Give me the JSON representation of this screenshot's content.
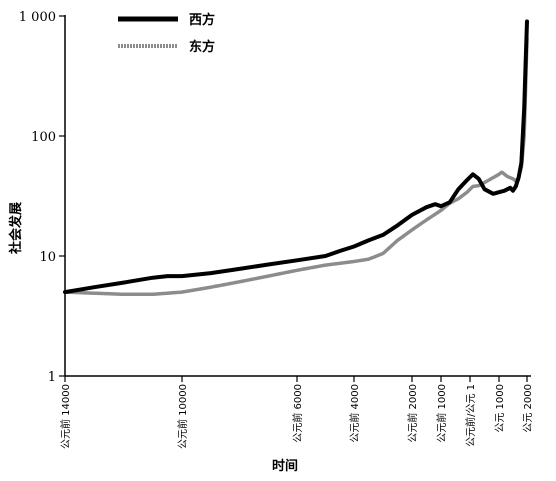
{
  "chart_data": {
    "type": "line",
    "title": "",
    "xlabel": "时间",
    "ylabel": "社会发展",
    "yscale": "log",
    "ylim": [
      1,
      1000
    ],
    "yticks": [
      {
        "value": 1,
        "label": "1"
      },
      {
        "value": 10,
        "label": "10"
      },
      {
        "value": 100,
        "label": "100"
      },
      {
        "value": 1000,
        "label": "1 000"
      }
    ],
    "xlim": [
      -14000,
      2000
    ],
    "xticks": [
      {
        "value": -14000,
        "label": "公元前 14000"
      },
      {
        "value": -10000,
        "label": "公元前 10000"
      },
      {
        "value": -6000,
        "label": "公元前 6000"
      },
      {
        "value": -4000,
        "label": "公元前 4000"
      },
      {
        "value": -2000,
        "label": "公元前 2000"
      },
      {
        "value": -1000,
        "label": "公元前 1000"
      },
      {
        "value": 0,
        "label": "公元前/公元 1"
      },
      {
        "value": 1000,
        "label": "公元 1000"
      },
      {
        "value": 2000,
        "label": "公元 2000"
      }
    ],
    "legend_position": "top-left",
    "series": [
      {
        "name": "西方",
        "color": "#000000",
        "points": [
          [
            -14000,
            5.0
          ],
          [
            -13000,
            5.5
          ],
          [
            -12000,
            6.0
          ],
          [
            -11000,
            6.6
          ],
          [
            -10500,
            6.8
          ],
          [
            -10000,
            6.8
          ],
          [
            -9000,
            7.2
          ],
          [
            -8000,
            7.8
          ],
          [
            -7000,
            8.5
          ],
          [
            -6000,
            9.2
          ],
          [
            -5000,
            10.0
          ],
          [
            -4500,
            11.0
          ],
          [
            -4000,
            12.0
          ],
          [
            -3500,
            13.5
          ],
          [
            -3000,
            15.0
          ],
          [
            -2500,
            18.0
          ],
          [
            -2000,
            22.0
          ],
          [
            -1500,
            25.5
          ],
          [
            -1200,
            27.0
          ],
          [
            -1000,
            26.0
          ],
          [
            -700,
            28.0
          ],
          [
            -400,
            36.0
          ],
          [
            -100,
            43.0
          ],
          [
            100,
            48.0
          ],
          [
            300,
            44.0
          ],
          [
            500,
            36.0
          ],
          [
            800,
            33.0
          ],
          [
            1000,
            34.0
          ],
          [
            1200,
            35.0
          ],
          [
            1400,
            37.0
          ],
          [
            1500,
            35.0
          ],
          [
            1600,
            38.0
          ],
          [
            1700,
            45.0
          ],
          [
            1800,
            60.0
          ],
          [
            1900,
            170.0
          ],
          [
            1950,
            400.0
          ],
          [
            2000,
            900.0
          ]
        ]
      },
      {
        "name": "东方",
        "color": "#8c8c8c",
        "points": [
          [
            -14000,
            5.0
          ],
          [
            -13000,
            4.9
          ],
          [
            -12000,
            4.8
          ],
          [
            -11000,
            4.8
          ],
          [
            -10000,
            5.0
          ],
          [
            -9000,
            5.5
          ],
          [
            -8000,
            6.1
          ],
          [
            -7000,
            6.8
          ],
          [
            -6000,
            7.6
          ],
          [
            -5000,
            8.4
          ],
          [
            -4500,
            8.7
          ],
          [
            -4000,
            9.0
          ],
          [
            -3500,
            9.4
          ],
          [
            -3000,
            10.5
          ],
          [
            -2500,
            13.5
          ],
          [
            -2000,
            16.5
          ],
          [
            -1500,
            20.0
          ],
          [
            -1000,
            24.0
          ],
          [
            -700,
            27.5
          ],
          [
            -400,
            30.0
          ],
          [
            -100,
            34.0
          ],
          [
            100,
            38.0
          ],
          [
            300,
            38.5
          ],
          [
            500,
            41.0
          ],
          [
            800,
            45.0
          ],
          [
            1000,
            48.0
          ],
          [
            1100,
            50.0
          ],
          [
            1300,
            46.0
          ],
          [
            1500,
            44.0
          ],
          [
            1600,
            42.0
          ],
          [
            1700,
            45.0
          ],
          [
            1800,
            55.0
          ],
          [
            1900,
            100.0
          ],
          [
            1950,
            250.0
          ],
          [
            2000,
            650.0
          ]
        ]
      }
    ]
  }
}
